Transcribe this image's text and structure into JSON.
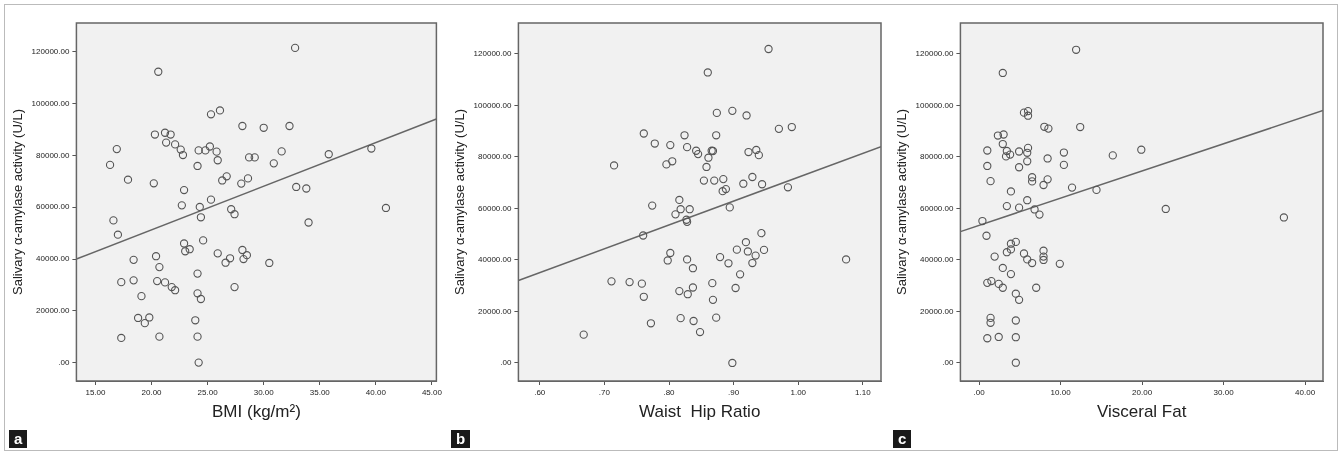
{
  "chart_data": [
    {
      "type": "scatter",
      "xlabel": "BMI (kg/m²)",
      "ylabel": "Salivary α-amylase activity (U/L)",
      "xlim": [
        13.3,
        45.4
      ],
      "ylim": [
        -7000,
        131000
      ],
      "xticks": [
        {
          "value": 15,
          "label": "15.00"
        },
        {
          "value": 20,
          "label": "20.00"
        },
        {
          "value": 25,
          "label": "25.00"
        },
        {
          "value": 30,
          "label": "30.00"
        },
        {
          "value": 35,
          "label": "35.00"
        },
        {
          "value": 40,
          "label": "40.00"
        },
        {
          "value": 45,
          "label": "45.00"
        }
      ],
      "yticks": [
        {
          "value": 0,
          "label": ".00"
        },
        {
          "value": 20000,
          "label": "20000.00"
        },
        {
          "value": 40000,
          "label": "40000.00"
        },
        {
          "value": 60000,
          "label": "60000.00"
        },
        {
          "value": 80000,
          "label": "80000.00"
        },
        {
          "value": 100000,
          "label": "100000.00"
        },
        {
          "value": 120000,
          "label": "120000.00"
        }
      ],
      "annotations": [
        "a"
      ],
      "series": [
        {
          "type": "scatter",
          "marker": "circle",
          "color": "#555555",
          "x": [
            32.8,
            20.6,
            25.3,
            26.1,
            28.1,
            30.0,
            32.3,
            20.3,
            21.2,
            21.7,
            21.3,
            22.1,
            22.6,
            22.8,
            16.9,
            24.2,
            25.2,
            24.8,
            25.8,
            25.9,
            24.1,
            16.3,
            17.9,
            20.2,
            26.3,
            26.7,
            28.0,
            28.6,
            28.7,
            29.2,
            30.9,
            31.6,
            35.8,
            39.6,
            22.9,
            32.9,
            33.8,
            25.3,
            22.7,
            24.3,
            27.1,
            27.4,
            24.4,
            40.9,
            34.0,
            16.6,
            17.0,
            24.6,
            22.9,
            23.0,
            23.4,
            25.9,
            28.1,
            28.5,
            28.2,
            27.0,
            26.6,
            30.5,
            20.4,
            20.7,
            18.4,
            24.1,
            18.4,
            17.3,
            20.5,
            21.2,
            21.8,
            22.1,
            27.4,
            19.1,
            24.1,
            24.4,
            18.8,
            19.8,
            19.4,
            23.9,
            17.3,
            20.7,
            24.1,
            24.2
          ],
          "values": [
            121400,
            112200,
            95800,
            97300,
            91300,
            90600,
            91300,
            88000,
            88700,
            88000,
            84900,
            84200,
            82200,
            80100,
            82400,
            81900,
            83400,
            81900,
            81400,
            78100,
            75900,
            76300,
            70600,
            69200,
            70300,
            71900,
            69100,
            71100,
            79200,
            79200,
            76900,
            81500,
            80400,
            82600,
            66600,
            67800,
            67200,
            62900,
            60700,
            60100,
            59200,
            57300,
            56100,
            59700,
            54100,
            54900,
            49400,
            47200,
            46000,
            43000,
            43800,
            42200,
            43500,
            41500,
            40000,
            40300,
            38600,
            38500,
            41100,
            36900,
            39700,
            34400,
            31800,
            31100,
            31500,
            31000,
            29200,
            28000,
            29200,
            25700,
            26800,
            24600,
            17300,
            17500,
            15300,
            16400,
            9600,
            10100,
            10100,
            100
          ]
        },
        {
          "type": "line",
          "color": "#666666",
          "x": [
            13.3,
            45.4
          ],
          "values": [
            40000,
            94000
          ]
        }
      ]
    },
    {
      "type": "scatter",
      "xlabel": "Waist  Hip Ratio",
      "ylabel": "Salivary α-amylase activity (U/L)",
      "xlim": [
        0.567,
        1.128
      ],
      "ylim": [
        -7000,
        132000
      ],
      "xticks": [
        {
          "value": 0.6,
          "label": ".60"
        },
        {
          "value": 0.7,
          "label": ".70"
        },
        {
          "value": 0.8,
          "label": ".80"
        },
        {
          "value": 0.9,
          "label": ".90"
        },
        {
          "value": 1.0,
          "label": "1.00"
        },
        {
          "value": 1.1,
          "label": "1.10"
        }
      ],
      "yticks": [
        {
          "value": 0,
          "label": ".00"
        },
        {
          "value": 20000,
          "label": "20000.00"
        },
        {
          "value": 40000,
          "label": "40000.00"
        },
        {
          "value": 60000,
          "label": "60000.00"
        },
        {
          "value": 80000,
          "label": "80000.00"
        },
        {
          "value": 100000,
          "label": "100000.00"
        },
        {
          "value": 120000,
          "label": "120000.00"
        }
      ],
      "annotations": [
        "b"
      ],
      "series": [
        {
          "type": "scatter",
          "marker": "circle",
          "color": "#555555",
          "x": [
            0.954,
            0.86,
            0.874,
            0.898,
            0.92,
            0.97,
            0.99,
            0.761,
            0.824,
            0.873,
            0.778,
            0.802,
            0.828,
            0.842,
            0.845,
            0.866,
            0.868,
            0.861,
            0.923,
            0.935,
            0.939,
            0.715,
            0.796,
            0.805,
            0.858,
            0.854,
            0.87,
            0.884,
            0.888,
            0.883,
            0.915,
            0.929,
            0.944,
            0.984,
            0.774,
            0.816,
            0.818,
            0.832,
            0.81,
            0.827,
            0.828,
            0.894,
            0.943,
            0.76,
            0.919,
            0.905,
            0.922,
            0.934,
            0.947,
            0.929,
            0.879,
            0.892,
            0.802,
            0.798,
            0.828,
            0.837,
            1.074,
            0.711,
            0.739,
            0.758,
            0.761,
            0.816,
            0.829,
            0.837,
            0.867,
            0.868,
            0.91,
            0.903,
            0.668,
            0.772,
            0.818,
            0.838,
            0.873,
            0.848,
            0.898
          ],
          "values": [
            121900,
            112800,
            97100,
            97900,
            96100,
            90900,
            91600,
            89100,
            88400,
            88400,
            85200,
            84600,
            83800,
            82400,
            81100,
            82400,
            82300,
            79700,
            81900,
            82700,
            80700,
            76700,
            77100,
            78300,
            76100,
            70800,
            70800,
            71400,
            67500,
            66700,
            69600,
            72200,
            69400,
            68200,
            61100,
            63300,
            59700,
            59700,
            57700,
            55600,
            54800,
            60400,
            50400,
            49500,
            46900,
            44000,
            43300,
            41700,
            43900,
            38800,
            41100,
            38700,
            42700,
            39800,
            40200,
            36800,
            40200,
            31700,
            31400,
            30800,
            25700,
            27900,
            26700,
            29300,
            31000,
            24500,
            34400,
            29100,
            11000,
            15400,
            17400,
            16300,
            17600,
            12000,
            0
          ]
        },
        {
          "type": "line",
          "color": "#666666",
          "x": [
            0.567,
            1.128
          ],
          "values": [
            32000,
            84000
          ]
        }
      ]
    },
    {
      "type": "scatter",
      "xlabel": "Visceral Fat",
      "ylabel": "Salivary α-amylase activity (U/L)",
      "xlim": [
        -2.3,
        42.2
      ],
      "ylim": [
        -7000,
        132000
      ],
      "xticks": [
        {
          "value": 0,
          "label": ".00"
        },
        {
          "value": 10,
          "label": "10.00"
        },
        {
          "value": 20,
          "label": "20.00"
        },
        {
          "value": 30,
          "label": "30.00"
        },
        {
          "value": 40,
          "label": "40.00"
        }
      ],
      "yticks": [
        {
          "value": 0,
          "label": ".00"
        },
        {
          "value": 20000,
          "label": "20000.00"
        },
        {
          "value": 40000,
          "label": "40000.00"
        },
        {
          "value": 60000,
          "label": "60000.00"
        },
        {
          "value": 80000,
          "label": "80000.00"
        },
        {
          "value": 100000,
          "label": "100000.00"
        },
        {
          "value": 120000,
          "label": "120000.00"
        }
      ],
      "annotations": [
        "c"
      ],
      "series": [
        {
          "type": "scatter",
          "marker": "circle",
          "color": "#555555",
          "x": [
            11.9,
            2.9,
            5.5,
            6.0,
            6.0,
            8.0,
            8.5,
            12.4,
            2.3,
            3.0,
            2.9,
            3.4,
            3.8,
            3.3,
            1.0,
            4.9,
            6.0,
            5.9,
            5.9,
            10.4,
            16.4,
            19.9,
            1.0,
            4.9,
            8.4,
            10.4,
            1.4,
            6.5,
            6.5,
            8.4,
            7.9,
            11.4,
            14.4,
            3.9,
            5.9,
            3.4,
            4.9,
            6.8,
            7.4,
            22.9,
            37.4,
            0.4,
            0.9,
            3.9,
            4.5,
            3.9,
            3.4,
            5.5,
            7.9,
            7.9,
            7.9,
            5.9,
            6.5,
            9.9,
            1.9,
            2.9,
            3.9,
            1.0,
            1.5,
            2.4,
            2.9,
            7.0,
            4.5,
            4.9,
            1.4,
            1.4,
            4.5,
            1.0,
            2.4,
            4.5,
            4.5
          ],
          "values": [
            121600,
            112600,
            97200,
            97800,
            96000,
            91700,
            91000,
            91600,
            88300,
            88700,
            85000,
            82300,
            80900,
            80200,
            82500,
            82100,
            83500,
            81600,
            78300,
            81700,
            80600,
            82800,
            76500,
            76000,
            79400,
            76900,
            70600,
            72100,
            70500,
            71300,
            69100,
            68100,
            67200,
            66600,
            63200,
            60900,
            60300,
            59600,
            57600,
            59800,
            56500,
            55100,
            49400,
            46300,
            47000,
            44100,
            43000,
            42500,
            43600,
            41300,
            40000,
            40200,
            38800,
            38500,
            41300,
            36900,
            34500,
            31100,
            31800,
            30700,
            29200,
            29200,
            26900,
            24500,
            17500,
            15600,
            16500,
            9600,
            10100,
            10000,
            100
          ]
        },
        {
          "type": "line",
          "color": "#666666",
          "x": [
            -2.3,
            42.2
          ],
          "values": [
            51000,
            98000
          ]
        }
      ]
    }
  ]
}
